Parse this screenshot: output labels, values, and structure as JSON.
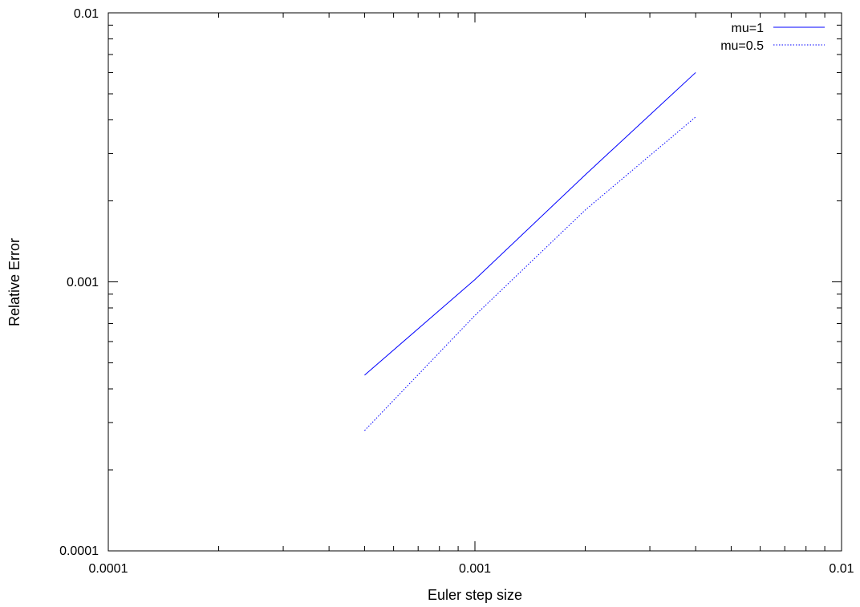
{
  "chart_data": {
    "type": "line",
    "xscale": "log",
    "yscale": "log",
    "xlim": [
      0.0001,
      0.01
    ],
    "ylim": [
      0.0001,
      0.01
    ],
    "xlabel": "Euler step size",
    "ylabel": "Relative Error",
    "x_ticks": [
      "0.0001",
      "0.001",
      "0.01"
    ],
    "y_ticks": [
      "0.0001",
      "0.001",
      "0.01"
    ],
    "grid": false,
    "legend_position": "top-right",
    "series": [
      {
        "name": "mu=1",
        "color": "#0000ff",
        "style": "solid",
        "x": [
          0.0005,
          0.001,
          0.002,
          0.004
        ],
        "y": [
          0.00045,
          0.00102,
          0.0025,
          0.006
        ]
      },
      {
        "name": "mu=0.5",
        "color": "#0000ff",
        "style": "dotted",
        "x": [
          0.0005,
          0.001,
          0.002,
          0.004
        ],
        "y": [
          0.00028,
          0.00075,
          0.00185,
          0.0041
        ]
      }
    ]
  }
}
